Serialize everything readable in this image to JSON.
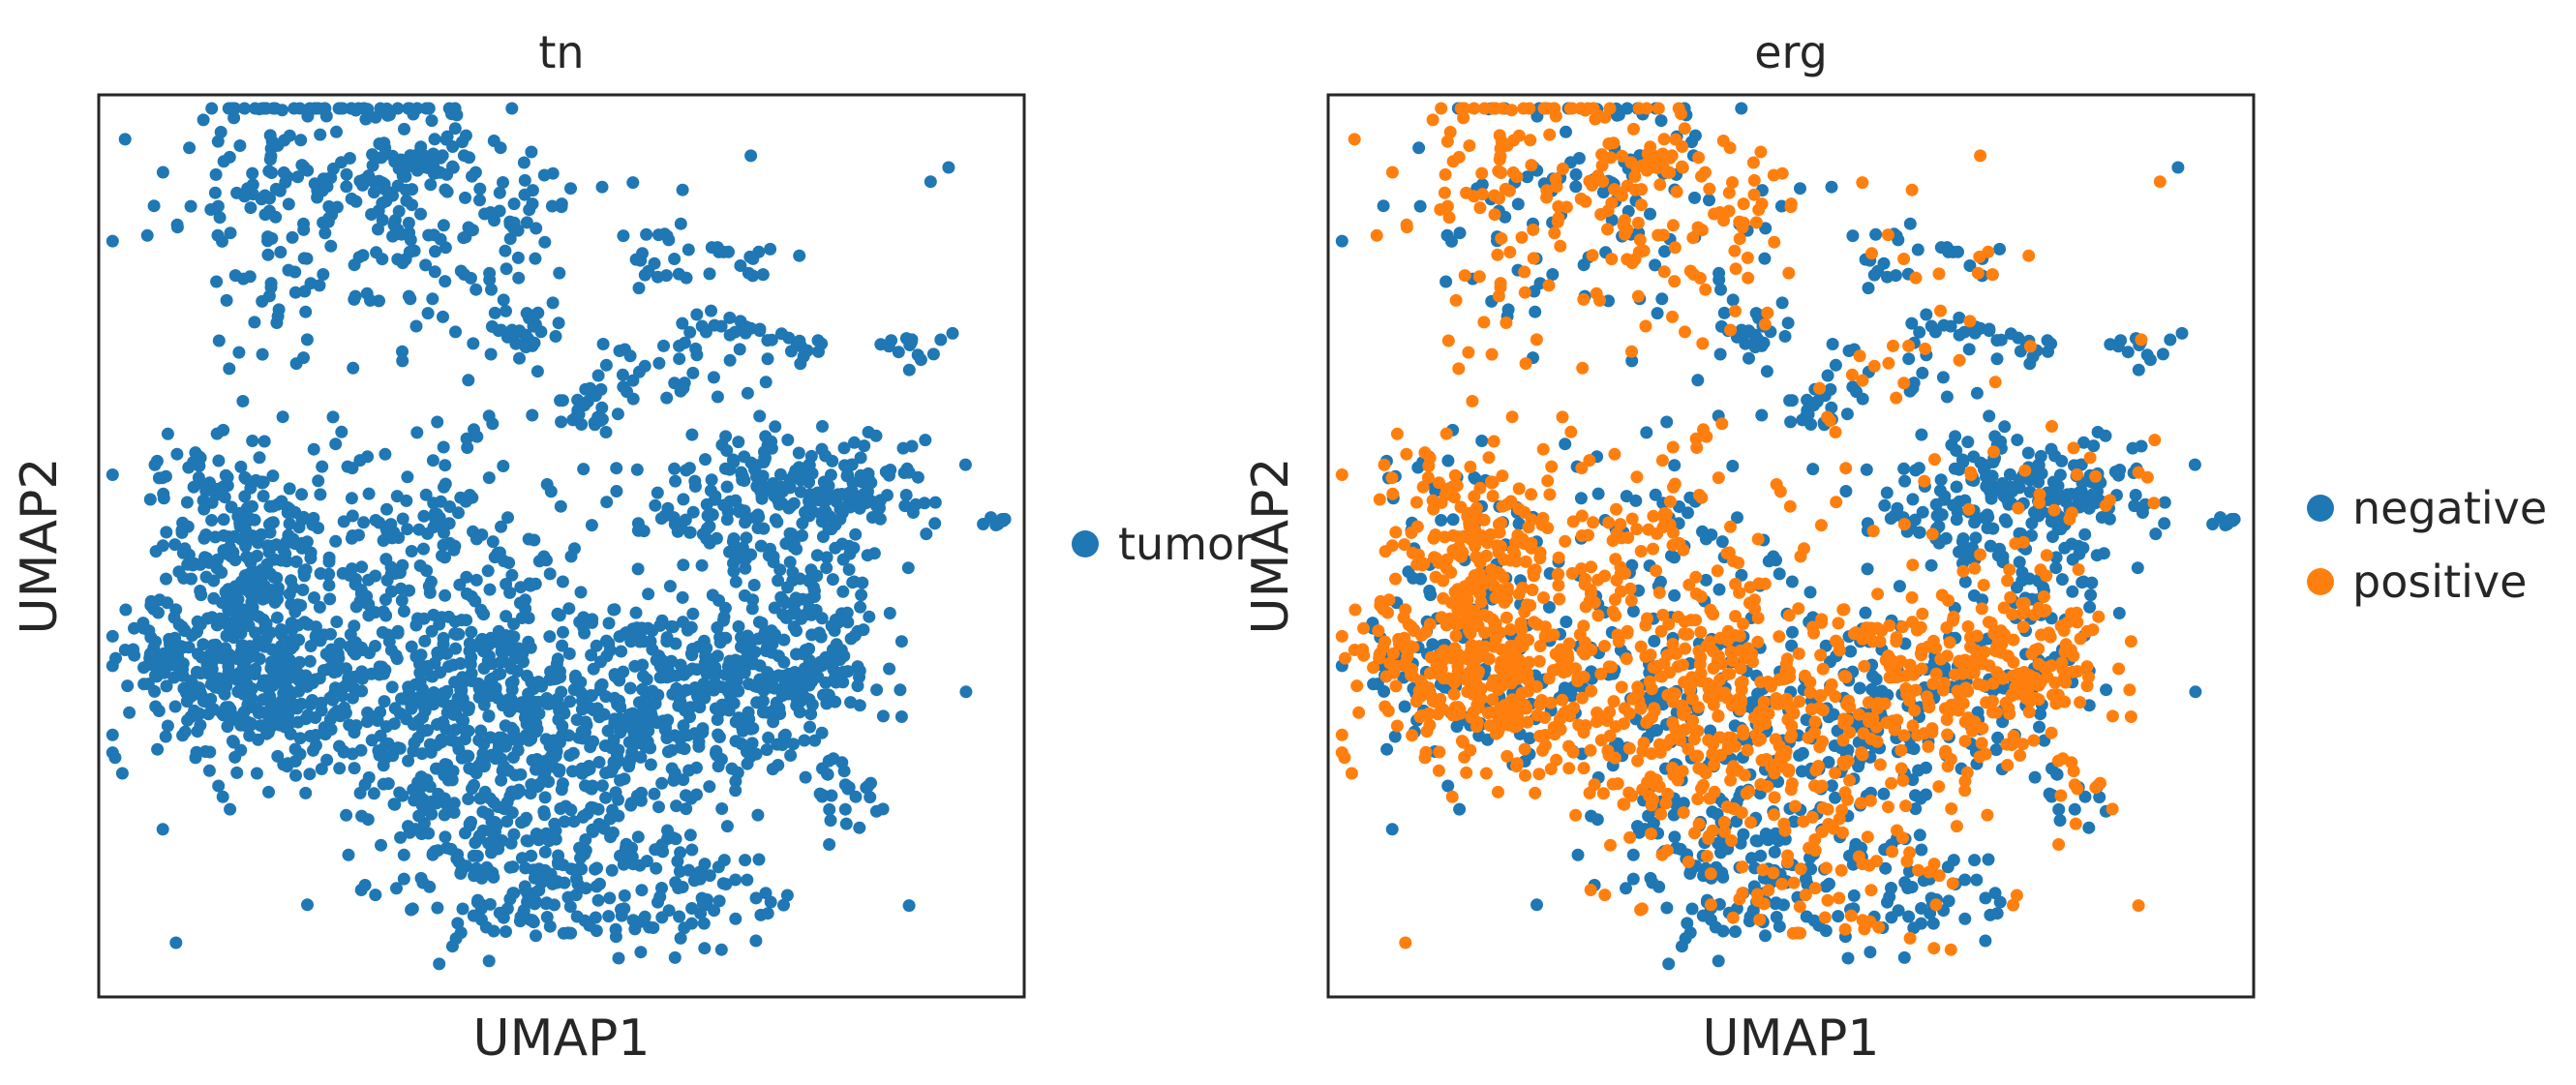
{
  "figure": {
    "panels": [
      {
        "title": "tn",
        "xlabel": "UMAP1",
        "ylabel": "UMAP2",
        "legend": [
          {
            "label": "tumor",
            "color": "#1f77b4"
          }
        ]
      },
      {
        "title": "erg",
        "xlabel": "UMAP1",
        "ylabel": "UMAP2",
        "legend": [
          {
            "label": "negative",
            "color": "#1f77b4"
          },
          {
            "label": "positive",
            "color": "#ff7f0e"
          }
        ]
      }
    ]
  },
  "chart_data": [
    {
      "type": "scatter",
      "title": "tn",
      "xlabel": "UMAP1",
      "ylabel": "UMAP2",
      "xlim": [
        0,
        10
      ],
      "ylim": [
        0,
        10
      ],
      "grid": false,
      "ticks": false,
      "legend_position": "right",
      "series": [
        {
          "name": "tumor",
          "color": "#1f77b4",
          "points_approx": 2600
        }
      ]
    },
    {
      "type": "scatter",
      "title": "erg",
      "xlabel": "UMAP1",
      "ylabel": "UMAP2",
      "xlim": [
        0,
        10
      ],
      "ylim": [
        0,
        10
      ],
      "grid": false,
      "ticks": false,
      "legend_position": "right",
      "series": [
        {
          "name": "negative",
          "color": "#1f77b4",
          "points_approx": 1000
        },
        {
          "name": "positive",
          "color": "#ff7f0e",
          "points_approx": 1600
        }
      ]
    }
  ]
}
